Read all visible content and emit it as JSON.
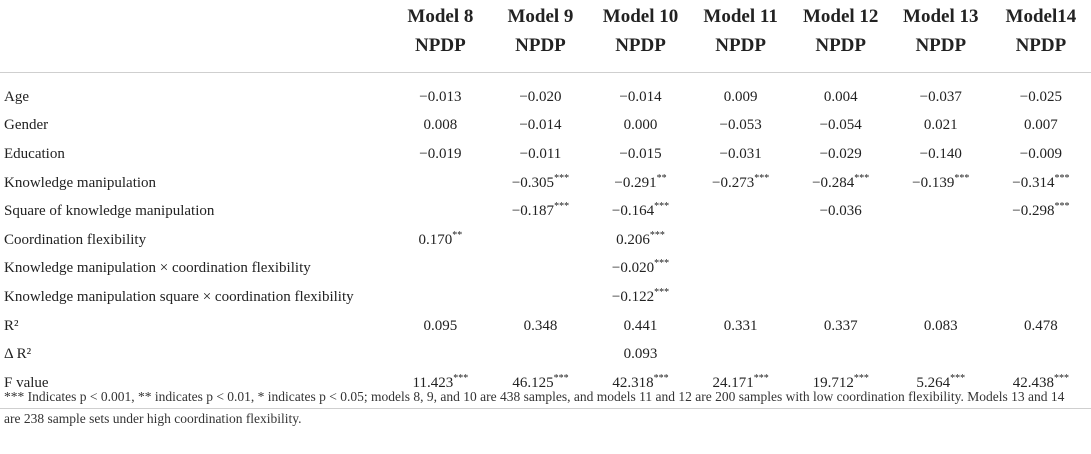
{
  "header": {
    "models": [
      "Model 8",
      "Model 9",
      "Model 10",
      "Model 11",
      "Model 12",
      "Model 13",
      "Model14"
    ],
    "dv": [
      "NPDP",
      "NPDP",
      "NPDP",
      "NPDP",
      "NPDP",
      "NPDP",
      "NPDP"
    ]
  },
  "rows": [
    {
      "label": "Age",
      "values": [
        "−0.013",
        "−0.020",
        "−0.014",
        "0.009",
        "0.004",
        "−0.037",
        "−0.025"
      ]
    },
    {
      "label": "Gender",
      "values": [
        "0.008",
        "−0.014",
        "0.000",
        "−0.053",
        "−0.054",
        "0.021",
        "0.007"
      ]
    },
    {
      "label": "Education",
      "values": [
        "−0.019",
        "−0.011",
        "−0.015",
        "−0.031",
        "−0.029",
        "−0.140",
        "−0.009"
      ]
    },
    {
      "label": "Knowledge manipulation",
      "values": [
        "",
        "−0.305***",
        "−0.291**",
        "−0.273***",
        "−0.284***",
        "−0.139***",
        "−0.314***"
      ]
    },
    {
      "label": "Square of knowledge manipulation",
      "values": [
        "",
        "−0.187***",
        "−0.164***",
        "",
        "−0.036",
        "",
        "−0.298***"
      ]
    },
    {
      "label": "Coordination flexibility",
      "values": [
        "0.170**",
        "",
        "0.206***",
        "",
        "",
        "",
        ""
      ]
    },
    {
      "label": "Knowledge manipulation × coordination flexibility",
      "values": [
        "",
        "",
        "−0.020***",
        "",
        "",
        "",
        ""
      ]
    },
    {
      "label": "Knowledge manipulation square × coordination flexibility",
      "values": [
        "",
        "",
        "−0.122***",
        "",
        "",
        "",
        ""
      ]
    },
    {
      "label": "R²",
      "values": [
        "0.095",
        "0.348",
        "0.441",
        "0.331",
        "0.337",
        "0.083",
        "0.478"
      ]
    },
    {
      "label": "Δ R²",
      "values": [
        "",
        "",
        "0.093",
        "",
        "",
        "",
        ""
      ]
    },
    {
      "label": "F value",
      "values": [
        "11.423***",
        "46.125***",
        "42.318***",
        "24.171***",
        "19.712***",
        "5.264***",
        "42.438***"
      ]
    }
  ],
  "footnote": "*** Indicates p < 0.001, ** indicates p < 0.01, * indicates p < 0.05; models 8, 9, and 10 are 438 samples, and models 11 and 12 are 200 samples with low coordination flexibility. Models 13 and 14 are 238 sample sets under high coordination flexibility."
}
